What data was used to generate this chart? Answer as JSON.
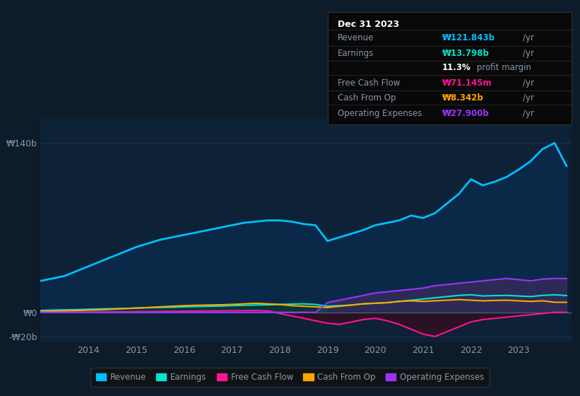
{
  "bg_color": "#0d1b2a",
  "plot_bg_color": "#0d2137",
  "text_color": "#8899aa",
  "years": [
    2013.0,
    2013.25,
    2013.5,
    2013.75,
    2014.0,
    2014.25,
    2014.5,
    2014.75,
    2015.0,
    2015.25,
    2015.5,
    2015.75,
    2016.0,
    2016.25,
    2016.5,
    2016.75,
    2017.0,
    2017.25,
    2017.5,
    2017.75,
    2018.0,
    2018.25,
    2018.5,
    2018.75,
    2019.0,
    2019.25,
    2019.5,
    2019.75,
    2020.0,
    2020.25,
    2020.5,
    2020.75,
    2021.0,
    2021.25,
    2021.5,
    2021.75,
    2022.0,
    2022.25,
    2022.5,
    2022.75,
    2023.0,
    2023.25,
    2023.5,
    2023.75,
    2024.0
  ],
  "revenue": [
    26,
    28,
    30,
    34,
    38,
    42,
    46,
    50,
    54,
    57,
    60,
    62,
    64,
    66,
    68,
    70,
    72,
    74,
    75,
    76,
    76,
    75,
    73,
    72,
    59,
    62,
    65,
    68,
    72,
    74,
    76,
    80,
    78,
    82,
    90,
    98,
    110,
    105,
    108,
    112,
    118,
    125,
    135,
    140,
    121
  ],
  "earnings": [
    1.5,
    1.8,
    2.0,
    2.2,
    2.5,
    2.8,
    3.0,
    3.2,
    3.5,
    3.8,
    4.0,
    4.2,
    4.5,
    4.8,
    5.0,
    5.2,
    5.5,
    5.8,
    6.0,
    6.2,
    6.5,
    6.8,
    7.0,
    6.5,
    5.0,
    5.5,
    6.0,
    7.0,
    7.5,
    8.0,
    9.0,
    10.0,
    11.0,
    12.0,
    13.0,
    14.0,
    14.5,
    13.5,
    13.8,
    14.0,
    13.5,
    13.0,
    14.0,
    14.5,
    13.8
  ],
  "free_cash_flow": [
    0.5,
    0.4,
    0.3,
    0.2,
    0.1,
    0.2,
    0.3,
    0.4,
    0.5,
    0.6,
    0.7,
    0.8,
    0.9,
    1.0,
    1.1,
    1.2,
    1.3,
    1.4,
    1.5,
    1.2,
    -1.0,
    -3.0,
    -5.0,
    -7.0,
    -9.0,
    -10.0,
    -8.0,
    -6.0,
    -5.0,
    -7.0,
    -10.0,
    -14.0,
    -18.0,
    -20.0,
    -16.0,
    -12.0,
    -8.0,
    -6.0,
    -5.0,
    -4.0,
    -3.0,
    -2.0,
    -1.0,
    0.1,
    0.07
  ],
  "cash_from_op": [
    0.8,
    1.0,
    1.2,
    1.5,
    1.8,
    2.0,
    2.5,
    3.0,
    3.5,
    4.0,
    4.5,
    5.0,
    5.5,
    5.8,
    6.0,
    6.2,
    6.5,
    7.0,
    7.5,
    7.0,
    6.5,
    5.5,
    5.0,
    4.5,
    4.0,
    5.0,
    6.0,
    7.0,
    7.5,
    8.0,
    9.0,
    9.5,
    9.0,
    9.5,
    10.0,
    10.5,
    10.0,
    9.5,
    9.8,
    10.0,
    9.5,
    9.0,
    9.5,
    8.3,
    8.3
  ],
  "op_expenses": [
    0.0,
    0.0,
    0.0,
    0.0,
    0.0,
    0.0,
    0.0,
    0.0,
    0.0,
    0.0,
    0.0,
    0.0,
    0.0,
    0.0,
    0.0,
    0.0,
    0.0,
    0.0,
    0.0,
    0.0,
    0.0,
    0.0,
    0.0,
    0.0,
    8.0,
    10.0,
    12.0,
    14.0,
    16.0,
    17.0,
    18.0,
    19.0,
    20.0,
    22.0,
    23.0,
    24.0,
    25.0,
    26.0,
    27.0,
    28.0,
    27.0,
    26.0,
    27.5,
    28.0,
    27.9
  ],
  "revenue_color": "#00bfff",
  "earnings_color": "#00e5cc",
  "fcf_color": "#ff1493",
  "cashop_color": "#ffa500",
  "opex_color": "#9933ff",
  "ylim_min": -25,
  "ylim_max": 160,
  "yticks": [
    -20,
    0,
    140
  ],
  "ytick_labels": [
    "-₩20b",
    "₩0",
    "₩140b"
  ],
  "xtick_years": [
    2014,
    2015,
    2016,
    2017,
    2018,
    2019,
    2020,
    2021,
    2022,
    2023
  ],
  "tooltip_bg": "#080808",
  "tooltip_title": "Dec 31 2023",
  "tooltip_rows": [
    {
      "label": "Revenue",
      "value": "₩121.843b",
      "unit": "/yr",
      "color": "#00bfff",
      "bold": true
    },
    {
      "label": "Earnings",
      "value": "₩13.798b",
      "unit": "/yr",
      "color": "#00e5cc",
      "bold": true
    },
    {
      "label": "",
      "value": "11.3%",
      "unit": " profit margin",
      "color": "#ffffff",
      "bold": true
    },
    {
      "label": "Free Cash Flow",
      "value": "₩71.145m",
      "unit": "/yr",
      "color": "#ff1493",
      "bold": true
    },
    {
      "label": "Cash From Op",
      "value": "₩8.342b",
      "unit": "/yr",
      "color": "#ffa500",
      "bold": true
    },
    {
      "label": "Operating Expenses",
      "value": "₩27.900b",
      "unit": "/yr",
      "color": "#9933ff",
      "bold": true
    }
  ],
  "legend_labels": [
    "Revenue",
    "Earnings",
    "Free Cash Flow",
    "Cash From Op",
    "Operating Expenses"
  ],
  "legend_colors": [
    "#00bfff",
    "#00e5cc",
    "#ff1493",
    "#ffa500",
    "#9933ff"
  ]
}
